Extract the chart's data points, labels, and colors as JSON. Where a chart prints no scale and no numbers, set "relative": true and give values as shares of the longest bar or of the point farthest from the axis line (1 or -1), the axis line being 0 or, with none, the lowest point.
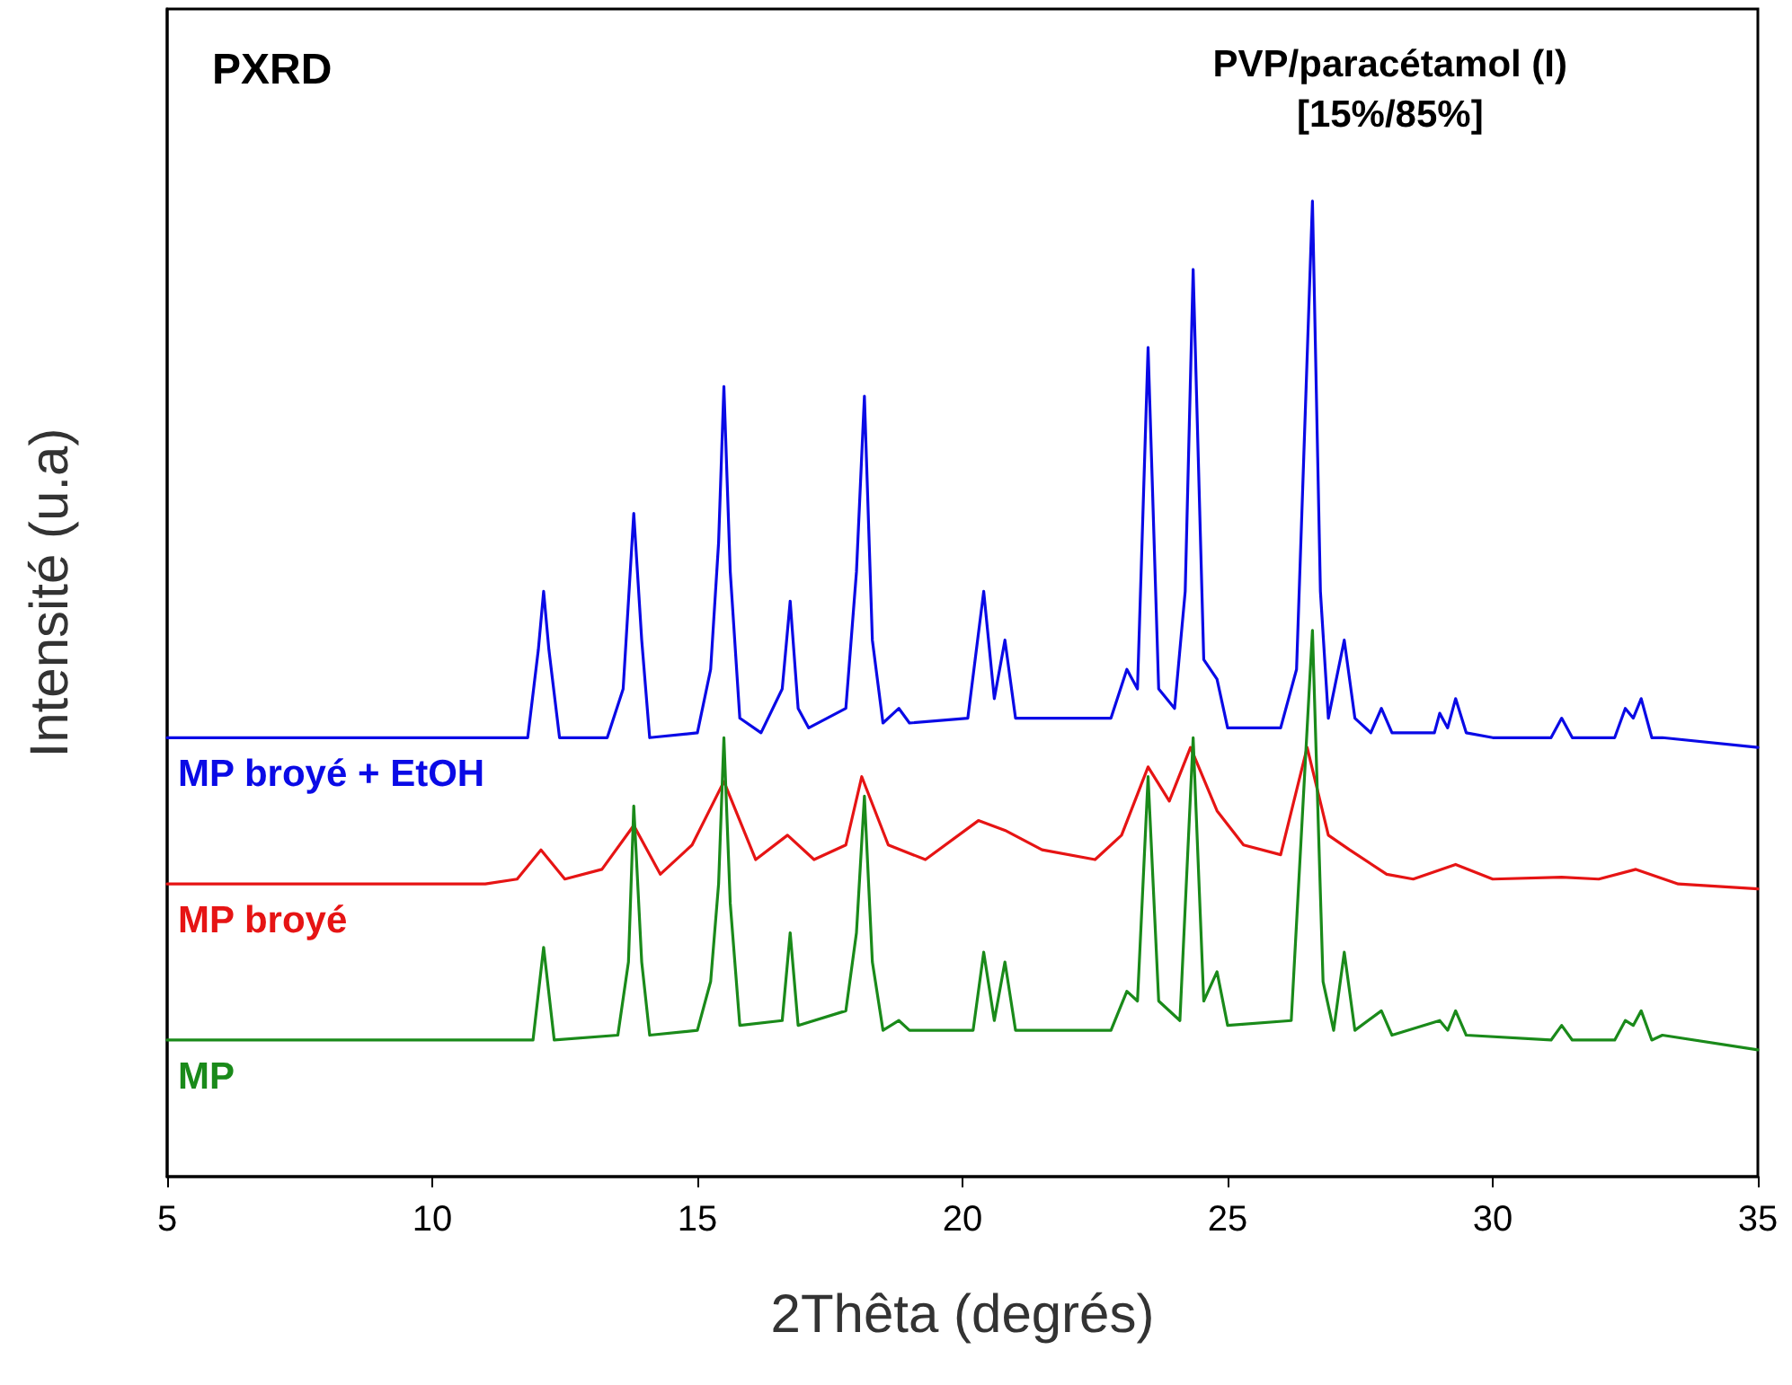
{
  "chart_data": {
    "type": "line",
    "title": "PXRD",
    "annotations": [
      "PVP/paracétamol (I)\n[15%/85%]"
    ],
    "xlabel": "2Thêta (degrés)",
    "ylabel": "Intensité (u.a)",
    "relative": true,
    "xlim": [
      5,
      35
    ],
    "xticks": [
      5,
      10,
      15,
      20,
      25,
      30,
      35
    ],
    "grid": false,
    "legend": false,
    "marker": "none",
    "line_style": "solid",
    "series": [
      {
        "name": "MP broyé + EtOH",
        "color": "#0a0ae6",
        "x": [
          5,
          8,
          11,
          11.8,
          12.0,
          12.1,
          12.2,
          12.4,
          13.3,
          13.6,
          13.8,
          13.95,
          14.1,
          15.0,
          15.25,
          15.4,
          15.5,
          15.62,
          15.8,
          16.2,
          16.6,
          16.75,
          16.9,
          17.1,
          17.8,
          18.0,
          18.15,
          18.3,
          18.5,
          18.8,
          19.0,
          20.1,
          20.4,
          20.6,
          20.8,
          21.0,
          22.8,
          23.1,
          23.3,
          23.5,
          23.7,
          24.0,
          24.2,
          24.35,
          24.55,
          24.8,
          25.0,
          26.0,
          26.3,
          26.6,
          26.75,
          26.9,
          27.2,
          27.4,
          27.7,
          27.9,
          28.1,
          28.9,
          29.0,
          29.15,
          29.3,
          29.5,
          30.0,
          31.1,
          31.3,
          31.5,
          32.3,
          32.5,
          32.65,
          32.8,
          33.0,
          33.2,
          35
        ],
        "values": [
          0.45,
          0.45,
          0.45,
          0.45,
          0.54,
          0.6,
          0.54,
          0.45,
          0.45,
          0.5,
          0.68,
          0.55,
          0.45,
          0.455,
          0.52,
          0.65,
          0.81,
          0.62,
          0.47,
          0.455,
          0.5,
          0.59,
          0.48,
          0.46,
          0.48,
          0.62,
          0.8,
          0.55,
          0.465,
          0.48,
          0.465,
          0.47,
          0.6,
          0.49,
          0.55,
          0.47,
          0.47,
          0.52,
          0.5,
          0.85,
          0.5,
          0.48,
          0.6,
          0.93,
          0.53,
          0.51,
          0.46,
          0.46,
          0.52,
          1.0,
          0.6,
          0.47,
          0.55,
          0.47,
          0.455,
          0.48,
          0.455,
          0.455,
          0.475,
          0.46,
          0.49,
          0.455,
          0.45,
          0.45,
          0.47,
          0.45,
          0.45,
          0.48,
          0.47,
          0.49,
          0.45,
          0.45,
          0.44
        ]
      },
      {
        "name": "MP broyé",
        "color": "#e61414",
        "x": [
          5,
          8,
          11,
          11.6,
          12.05,
          12.5,
          13.2,
          13.8,
          14.3,
          14.9,
          15.5,
          16.1,
          16.7,
          17.2,
          17.8,
          18.1,
          18.6,
          19.3,
          20.3,
          20.8,
          21.5,
          22.5,
          23.0,
          23.5,
          23.9,
          24.3,
          24.8,
          25.3,
          26.0,
          26.5,
          26.9,
          27.3,
          28.0,
          28.5,
          29.3,
          30.0,
          31.3,
          32.0,
          32.7,
          33.5,
          35
        ],
        "values": [
          0.3,
          0.3,
          0.3,
          0.305,
          0.335,
          0.305,
          0.315,
          0.36,
          0.31,
          0.34,
          0.405,
          0.325,
          0.35,
          0.325,
          0.34,
          0.41,
          0.34,
          0.325,
          0.365,
          0.355,
          0.335,
          0.325,
          0.35,
          0.42,
          0.385,
          0.44,
          0.375,
          0.34,
          0.33,
          0.44,
          0.35,
          0.335,
          0.31,
          0.305,
          0.32,
          0.305,
          0.307,
          0.305,
          0.315,
          0.3,
          0.295
        ]
      },
      {
        "name": "MP",
        "color": "#1a8a1a",
        "x": [
          5,
          8,
          11,
          11.9,
          12.1,
          12.3,
          13.5,
          13.7,
          13.8,
          13.95,
          14.1,
          15.0,
          15.25,
          15.4,
          15.5,
          15.62,
          15.8,
          16.6,
          16.75,
          16.9,
          17.8,
          18.0,
          18.15,
          18.3,
          18.5,
          18.8,
          19.0,
          20.2,
          20.4,
          20.6,
          20.8,
          21.0,
          22.8,
          23.1,
          23.3,
          23.5,
          23.7,
          24.1,
          24.35,
          24.55,
          24.8,
          25.0,
          26.2,
          26.6,
          26.8,
          27.0,
          27.2,
          27.4,
          27.9,
          28.1,
          29.0,
          29.15,
          29.3,
          29.5,
          31.1,
          31.3,
          31.5,
          32.3,
          32.5,
          32.65,
          32.8,
          33.0,
          33.2,
          35
        ],
        "values": [
          0.14,
          0.14,
          0.14,
          0.14,
          0.235,
          0.14,
          0.145,
          0.22,
          0.38,
          0.22,
          0.145,
          0.15,
          0.2,
          0.3,
          0.45,
          0.28,
          0.155,
          0.16,
          0.25,
          0.155,
          0.17,
          0.25,
          0.39,
          0.22,
          0.15,
          0.16,
          0.15,
          0.15,
          0.23,
          0.16,
          0.22,
          0.15,
          0.15,
          0.19,
          0.18,
          0.41,
          0.18,
          0.16,
          0.45,
          0.18,
          0.21,
          0.155,
          0.16,
          0.56,
          0.2,
          0.15,
          0.23,
          0.15,
          0.17,
          0.145,
          0.16,
          0.15,
          0.17,
          0.145,
          0.14,
          0.155,
          0.14,
          0.14,
          0.16,
          0.155,
          0.17,
          0.14,
          0.145,
          0.13
        ]
      }
    ]
  }
}
